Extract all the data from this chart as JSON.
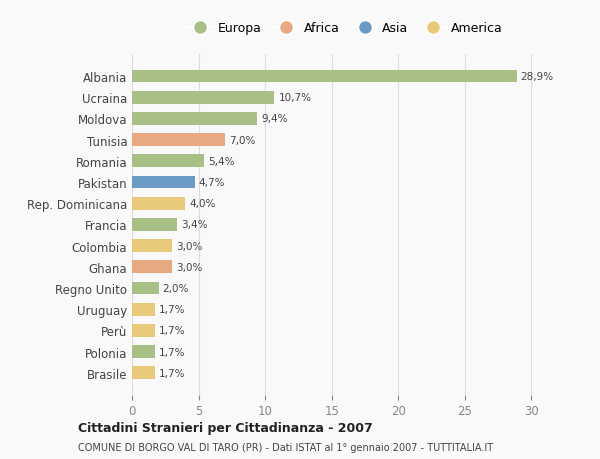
{
  "categories": [
    "Brasile",
    "Polonia",
    "Perù",
    "Uruguay",
    "Regno Unito",
    "Ghana",
    "Colombia",
    "Francia",
    "Rep. Dominicana",
    "Pakistan",
    "Romania",
    "Tunisia",
    "Moldova",
    "Ucraina",
    "Albania"
  ],
  "values": [
    1.7,
    1.7,
    1.7,
    1.7,
    2.0,
    3.0,
    3.0,
    3.4,
    4.0,
    4.7,
    5.4,
    7.0,
    9.4,
    10.7,
    28.9
  ],
  "labels": [
    "1,7%",
    "1,7%",
    "1,7%",
    "1,7%",
    "2,0%",
    "3,0%",
    "3,0%",
    "3,4%",
    "4,0%",
    "4,7%",
    "5,4%",
    "7,0%",
    "9,4%",
    "10,7%",
    "28,9%"
  ],
  "colors": [
    "#e8c97a",
    "#a8bf85",
    "#e8c97a",
    "#e8c97a",
    "#a8bf85",
    "#e8a882",
    "#e8c97a",
    "#a8bf85",
    "#e8c97a",
    "#6b9bc4",
    "#a8bf85",
    "#e8a882",
    "#a8bf85",
    "#a8bf85",
    "#a8bf85"
  ],
  "legend_labels": [
    "Europa",
    "Africa",
    "Asia",
    "America"
  ],
  "legend_colors": [
    "#a8bf85",
    "#e8a882",
    "#6b9bc4",
    "#e8c97a"
  ],
  "title": "Cittadini Stranieri per Cittadinanza - 2007",
  "subtitle": "COMUNE DI BORGO VAL DI TARO (PR) - Dati ISTAT al 1° gennaio 2007 - TUTTITALIA.IT",
  "xlim": [
    0,
    32
  ],
  "xticks": [
    0,
    5,
    10,
    15,
    20,
    25,
    30
  ],
  "background_color": "#f9f9f9",
  "grid_color": "#dddddd",
  "bar_height": 0.6
}
